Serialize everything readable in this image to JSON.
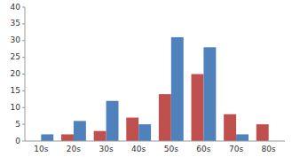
{
  "chart_data": {
    "type": "bar",
    "categories": [
      "10s",
      "20s",
      "30s",
      "40s",
      "50s",
      "60s",
      "70s",
      "80s"
    ],
    "series": [
      {
        "color": "#C0504D",
        "values": [
          0,
          2,
          3,
          7,
          14,
          20,
          8,
          5
        ]
      },
      {
        "color": "#4F81BD",
        "values": [
          2,
          6,
          12,
          5,
          31,
          28,
          2,
          0
        ]
      }
    ],
    "ylim": [
      0,
      40
    ],
    "yticks": [
      0,
      5,
      10,
      15,
      20,
      25,
      30,
      35,
      40
    ],
    "grid": false
  }
}
